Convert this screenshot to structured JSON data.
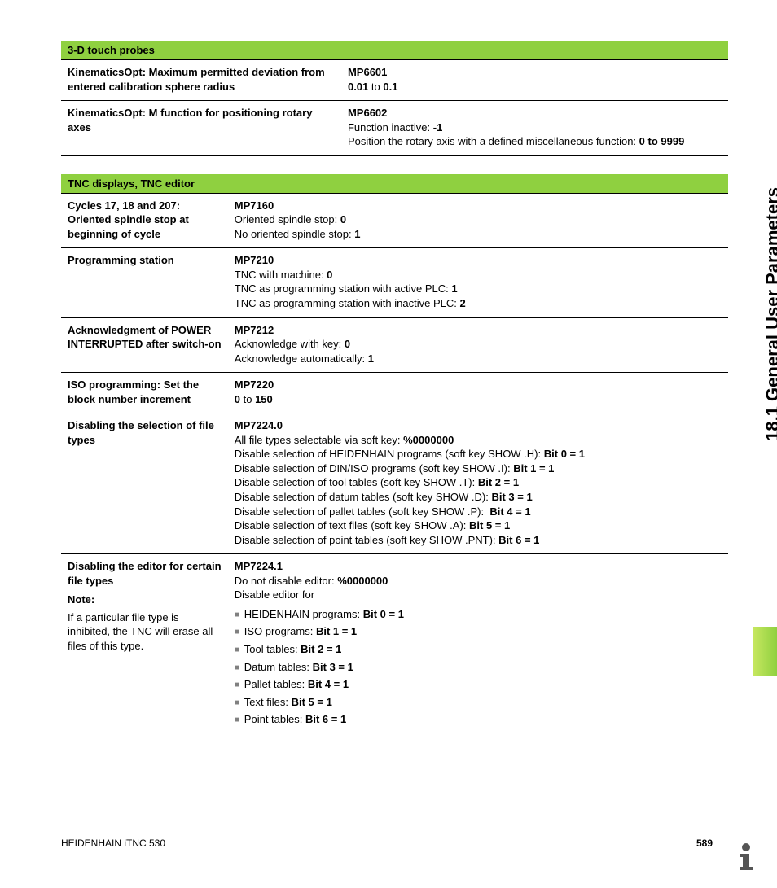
{
  "side_title": "18.1 General User Parameters",
  "footer": {
    "left": "HEIDENHAIN iTNC 530",
    "page": "589"
  },
  "section1": {
    "header": "3-D touch probes",
    "rows": [
      {
        "label": "KinematicsOpt: Maximum permitted deviation from entered calibration sphere radius",
        "desc": "<span class='mp'>MP6601</span><br><b>0.01</b> to <b>0.1</b>"
      },
      {
        "label": "KinematicsOpt: M function for positioning rotary axes",
        "desc": "<span class='mp'>MP6602</span><br>Function inactive: <b>-1</b><br>Position the rotary axis with a defined miscellaneous function: <b>0 to 9999</b>"
      }
    ]
  },
  "section2": {
    "header": "TNC displays, TNC editor",
    "rows": [
      {
        "label": "Cycles 17, 18 and 207: Oriented spindle stop at beginning of cycle",
        "desc": "<span class='mp'>MP7160</span><br>Oriented spindle stop: <b>0</b><br>No oriented spindle stop: <b>1</b>"
      },
      {
        "label": "Programming station",
        "desc": "<span class='mp'>MP7210</span><br>TNC with machine: <b>0</b><br>TNC as programming station with active PLC: <b>1</b><br>TNC as programming station with inactive PLC: <b>2</b>"
      },
      {
        "label": "Acknowledgment of POWER INTERRUPTED after switch-on",
        "desc": "<span class='mp'>MP7212</span><br>Acknowledge with key: <b>0</b><br>Acknowledge automatically: <b>1</b>"
      },
      {
        "label": "ISO programming: Set the block number increment",
        "desc": "<span class='mp'>MP7220</span><br><b>0</b> to <b>150</b>"
      },
      {
        "label": "Disabling the selection of file types",
        "desc": "<span class='mp'>MP7224.0</span><br>All file types selectable via soft key: <b>%0000000</b><br>Disable selection of HEIDENHAIN programs (soft key SHOW .H): <b>Bit 0 = 1</b><br>Disable selection of DIN/ISO programs (soft key SHOW .I): <b>Bit 1 = 1</b><br>Disable selection of tool tables (soft key SHOW .T): <b>Bit 2 = 1</b><br>Disable selection of datum tables (soft key SHOW .D): <b>Bit 3 = 1</b><br>Disable selection of pallet tables (soft key SHOW .P):&nbsp; <b>Bit 4 = 1</b><br>Disable selection of text files (soft key SHOW .A): <b>Bit 5 = 1</b><br>Disable selection of point tables (soft key SHOW .PNT): <b>Bit 6 = 1</b>"
      },
      {
        "label": "Disabling the editor for certain file types<span class='note-label'>Note:</span><span class='note-body'>If a particular file type is inhibited, the TNC will erase all files of this type.</span>",
        "desc": "<span class='mp'>MP7224.1</span><br>Do not disable editor: <b>%0000000</b><br>Disable editor for<ul class='square'><li>HEIDENHAIN programs: <b>Bit 0 = 1</b></li><li>ISO programs: <b>Bit 1 = 1</b></li><li>Tool tables: <b>Bit 2 = 1</b></li><li>Datum tables: <b>Bit 3 = 1</b></li><li>Pallet tables: <b>Bit 4 = 1</b></li><li>Text files: <b>Bit 5 = 1</b></li><li>Point tables: <b>Bit 6 = 1</b></li></ul>"
      }
    ]
  }
}
